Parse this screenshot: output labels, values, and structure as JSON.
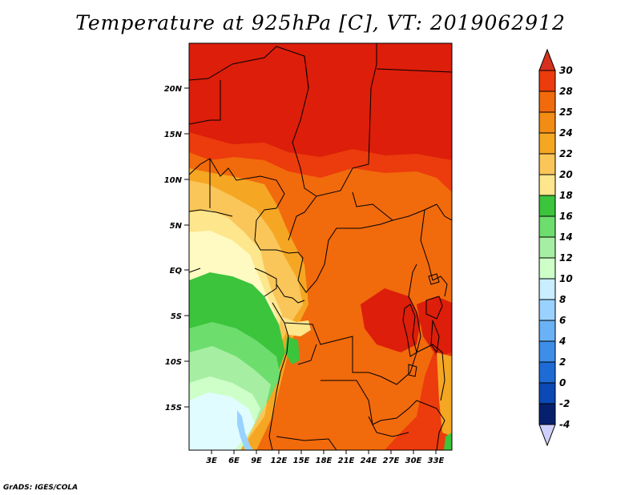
{
  "title": "Temperature at 925hPa [C], VT: 2019062912",
  "credit": "GrADS: IGES/COLA",
  "axes": {
    "lat_labels": [
      "20N",
      "15N",
      "10N",
      "5N",
      "EQ",
      "5S",
      "10S",
      "15S"
    ],
    "lon_labels": [
      "3E",
      "6E",
      "9E",
      "12E",
      "15E",
      "18E",
      "21E",
      "24E",
      "27E",
      "30E",
      "33E"
    ]
  },
  "colorbar": {
    "labels": [
      "30",
      "28",
      "25",
      "24",
      "22",
      "20",
      "18",
      "16",
      "14",
      "12",
      "10",
      "8",
      "6",
      "4",
      "2",
      "0",
      "-2",
      "-4"
    ],
    "colors": {
      "above_30": "#d7301f",
      "28_30": "#ec3b0c",
      "25_28": "#f16a0c",
      "24_25": "#f28c15",
      "22_24": "#f5a623",
      "20_22": "#fac65a",
      "18_20": "#fde68c",
      "16_18": "#fffac2",
      "14_16": "#3cc43c",
      "12_14": "#6ddd6d",
      "10_12": "#a6eea2",
      "8_10": "#ceffc8",
      "6_8": "#c8eeff",
      "4_6": "#9ad2ff",
      "2_4": "#6ab2f5",
      "0_2": "#3d8ee8",
      "m2_0": "#1e6bd6",
      "m4_m2": "#0c48b6",
      "below_m4": "#07206e",
      "below_m4_arrow": "#d0d0ff"
    }
  }
}
